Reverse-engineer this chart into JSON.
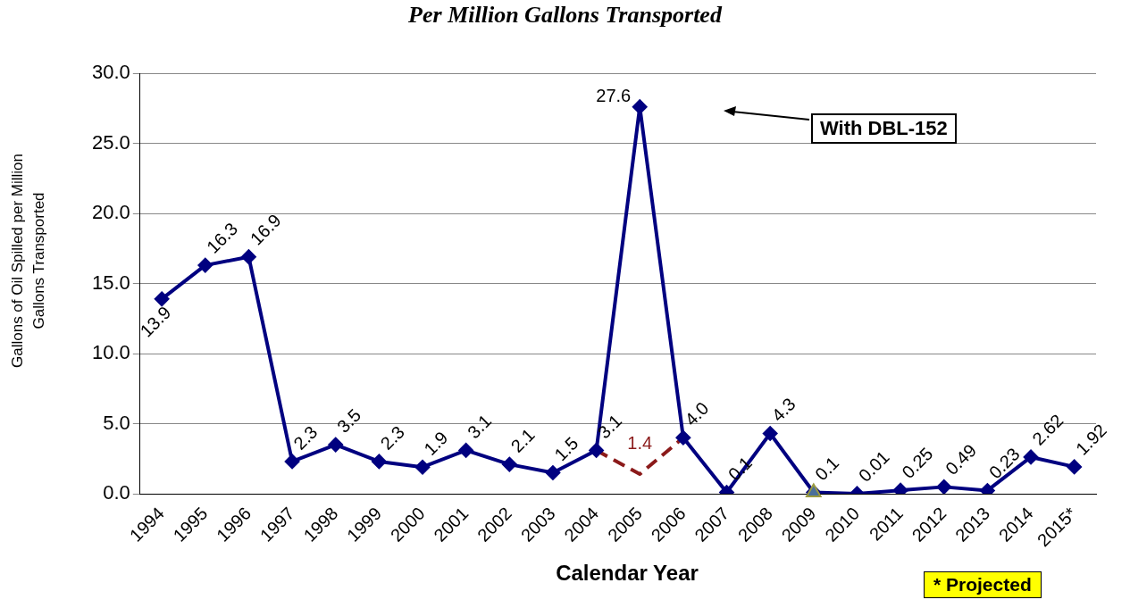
{
  "chart_data": {
    "type": "line",
    "title": "Per Million Gallons Transported",
    "xlabel": "Calendar Year",
    "ylabel": "Gallons of Oil Spilled per Million Gallons Transported",
    "categories": [
      "1994",
      "1995",
      "1996",
      "1997",
      "1998",
      "1999",
      "2000",
      "2001",
      "2002",
      "2003",
      "2004",
      "2005",
      "2006",
      "2007",
      "2008",
      "2009",
      "2010",
      "2011",
      "2012",
      "2013",
      "2014",
      "2015*"
    ],
    "series": [
      {
        "color": "#000080",
        "marker": "diamond",
        "line_style": "solid",
        "values": [
          13.9,
          16.3,
          16.9,
          2.3,
          3.5,
          2.3,
          1.9,
          3.1,
          2.1,
          1.5,
          3.1,
          27.6,
          4.0,
          0.1,
          4.3,
          0.1,
          0.01,
          0.25,
          0.49,
          0.23,
          2.62,
          1.92
        ],
        "value_labels": [
          "13.9",
          "16.3",
          "16.9",
          "2.3",
          "3.5",
          "2.3",
          "1.9",
          "3.1",
          "2.1",
          "1.5",
          "3.1",
          "27.6",
          "4.0",
          "0.1",
          "4.3",
          "0.1",
          "0.01",
          "0.25",
          "0.49",
          "0.23",
          "2.62",
          "1.92"
        ]
      },
      {
        "color": "#8b1a1a",
        "marker": "none",
        "line_style": "dashed",
        "values": [
          null,
          null,
          null,
          null,
          null,
          null,
          null,
          null,
          null,
          null,
          3.1,
          1.4,
          4.0,
          null,
          null,
          null,
          null,
          null,
          null,
          null,
          null,
          null
        ],
        "value_labels": [
          null,
          null,
          null,
          null,
          null,
          null,
          null,
          null,
          null,
          null,
          null,
          "1.4",
          null,
          null,
          null,
          null,
          null,
          null,
          null,
          null,
          null,
          null
        ]
      },
      {
        "type": "scatter",
        "color": "#4a6f9a",
        "marker": "triangle",
        "values": [
          null,
          null,
          null,
          null,
          null,
          null,
          null,
          null,
          null,
          null,
          null,
          null,
          null,
          null,
          null,
          0.1,
          null,
          null,
          null,
          null,
          null,
          null
        ]
      }
    ],
    "ylim": [
      0,
      30
    ],
    "yticks": [
      {
        "value": 0,
        "label": "0.0"
      },
      {
        "value": 5,
        "label": "5.0"
      },
      {
        "value": 10,
        "label": "10.0"
      },
      {
        "value": 15,
        "label": "15.0"
      },
      {
        "value": 20,
        "label": "20.0"
      },
      {
        "value": 25,
        "label": "25.0"
      },
      {
        "value": 30,
        "label": "30.0"
      }
    ],
    "grid": "y",
    "legend": false,
    "annotations": [
      "With DBL-152",
      "* Projected"
    ]
  }
}
